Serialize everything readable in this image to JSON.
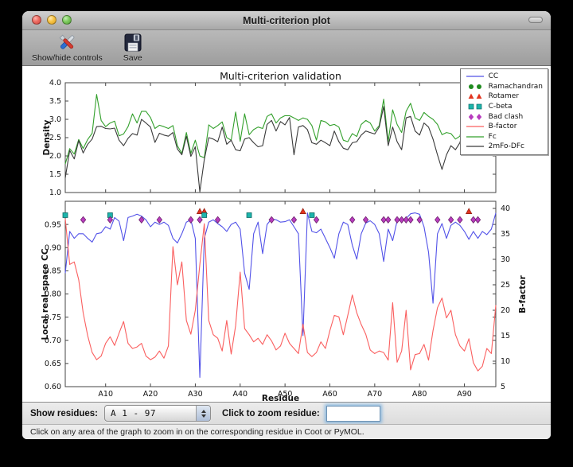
{
  "window": {
    "title": "Multi-criterion plot"
  },
  "toolbar": {
    "controls_label": "Show/hide controls",
    "save_label": "Save"
  },
  "figure": {
    "title": "Multi-criterion validation",
    "top": {
      "ylabel": "Density"
    },
    "bottom": {
      "ylabel_left": "Local real-space CC",
      "ylabel_right": "B-factor",
      "xlabel": "Residue"
    }
  },
  "legend": [
    {
      "label": "CC",
      "swatch": "line",
      "color": "#5252e8"
    },
    {
      "label": "Ramachandran",
      "swatch": "circle",
      "color": "#1f8b1f"
    },
    {
      "label": "Rotamer",
      "swatch": "triangle",
      "color": "#e2341f"
    },
    {
      "label": "C-beta",
      "swatch": "square",
      "color": "#1db4ab"
    },
    {
      "label": "Bad clash",
      "swatch": "diamond",
      "color": "#b83cbe"
    },
    {
      "label": "B-factor",
      "swatch": "line",
      "color": "#fa5f5f"
    },
    {
      "label": "Fc",
      "swatch": "line",
      "color": "#33a02c"
    },
    {
      "label": "2mFo-DFc",
      "swatch": "line",
      "color": "#3a3a3a"
    }
  ],
  "controls": {
    "show_residues_label": "Show residues:",
    "chain_range_value": "A  1 - 97",
    "zoom_residue_label": "Click to zoom residue:",
    "zoom_input_value": ""
  },
  "status": {
    "message": "Click on any area of the graph to zoom in on the corresponding residue in Coot or PyMOL."
  },
  "chart_data": [
    {
      "type": "line",
      "title": "Multi-criterion validation",
      "ylabel": "Density",
      "ylim": [
        1.0,
        4.0
      ],
      "ytick_values": [
        1.0,
        1.5,
        2.0,
        2.5,
        3.0,
        3.5,
        4.0
      ],
      "ytick_labels": [
        "1.0",
        "1.5",
        "2.0",
        "2.5",
        "3.0",
        "3.5",
        "4.0"
      ],
      "x_range": [
        1,
        97
      ],
      "xtick_values": [
        10,
        20,
        30,
        40,
        50,
        60,
        70,
        80,
        90
      ],
      "grid": false,
      "series": [
        {
          "name": "Fc",
          "color": "#33a02c",
          "values": [
            1.78,
            2.2,
            2.05,
            2.45,
            2.2,
            2.45,
            2.62,
            3.68,
            2.97,
            2.8,
            2.9,
            2.95,
            2.55,
            2.6,
            2.8,
            3.15,
            2.9,
            3.22,
            3.22,
            3.05,
            2.75,
            2.84,
            2.8,
            2.75,
            2.83,
            2.28,
            2.07,
            2.64,
            2.07,
            2.43,
            2.0,
            1.95,
            2.85,
            2.75,
            2.83,
            2.93,
            2.5,
            2.43,
            3.2,
            2.4,
            3.15,
            2.58,
            2.72,
            2.79,
            2.75,
            3.08,
            3.15,
            2.9,
            3.04,
            3.1,
            3.1,
            3.04,
            2.97,
            3.04,
            3.0,
            2.83,
            2.43,
            2.97,
            2.93,
            2.83,
            2.86,
            2.79,
            2.43,
            2.39,
            2.61,
            2.53,
            2.86,
            2.97,
            2.9,
            2.68,
            2.83,
            3.55,
            2.39,
            3.26,
            2.86,
            2.64,
            3.22,
            3.44,
            3.04,
            2.97,
            3.19,
            3.08,
            3.0,
            2.86,
            2.58,
            2.64,
            2.61,
            2.46,
            2.54,
            3.19,
            2.58,
            2.64,
            2.68,
            2.72,
            2.79,
            3.26,
            3.25
          ]
        },
        {
          "name": "2mFo-DFc",
          "color": "#3a3a3a",
          "values": [
            1.4,
            2.15,
            1.92,
            2.42,
            2.08,
            2.32,
            2.46,
            2.8,
            2.81,
            2.75,
            2.74,
            2.76,
            2.43,
            2.28,
            2.48,
            2.61,
            2.57,
            3.0,
            2.9,
            2.79,
            2.37,
            2.62,
            2.57,
            2.54,
            2.64,
            2.19,
            2.03,
            2.54,
            1.99,
            2.25,
            1.02,
            1.9,
            2.5,
            2.46,
            2.39,
            2.79,
            2.32,
            2.43,
            2.17,
            2.14,
            2.46,
            2.5,
            2.36,
            2.25,
            2.28,
            2.86,
            2.97,
            2.68,
            2.94,
            2.85,
            3.05,
            2.03,
            2.79,
            2.83,
            2.72,
            2.36,
            2.32,
            2.43,
            2.36,
            2.28,
            2.68,
            2.39,
            2.21,
            2.17,
            2.36,
            2.39,
            2.57,
            2.68,
            2.64,
            2.6,
            2.79,
            3.35,
            2.28,
            2.79,
            2.39,
            2.17,
            3.04,
            3.08,
            2.68,
            2.57,
            2.9,
            2.79,
            2.46,
            2.03,
            1.63,
            2.03,
            2.28,
            2.17,
            2.36,
            2.86,
            2.17,
            2.39,
            2.46,
            2.57,
            2.68,
            2.94,
            2.9
          ]
        }
      ]
    },
    {
      "type": "line+scatter",
      "xlabel": "Residue",
      "ylabel_left": "Local real-space CC",
      "ylim_left": [
        0.6,
        1.0
      ],
      "ytick_left_values": [
        0.6,
        0.65,
        0.7,
        0.75,
        0.8,
        0.85,
        0.9,
        0.95
      ],
      "ytick_left_labels": [
        "0.60",
        "0.65",
        "0.70",
        "0.75",
        "0.80",
        "0.85",
        "0.90",
        "0.95"
      ],
      "ylabel_right": "B-factor",
      "ylim_right": [
        5,
        41.4
      ],
      "ytick_right_values": [
        5,
        10,
        15,
        20,
        25,
        30,
        35,
        40
      ],
      "ytick_right_labels": [
        "5",
        "10",
        "15",
        "20",
        "25",
        "30",
        "35",
        "40"
      ],
      "x_range": [
        1,
        97
      ],
      "xtick_values": [
        10,
        20,
        30,
        40,
        50,
        60,
        70,
        80,
        90
      ],
      "xtick_labels": [
        "A10",
        "A20",
        "A30",
        "A40",
        "A50",
        "A60",
        "A70",
        "A80",
        "A90"
      ],
      "grid": false,
      "series": [
        {
          "name": "CC",
          "axis": "left",
          "color": "#5252e8",
          "values": [
            0.845,
            0.935,
            0.92,
            0.93,
            0.93,
            0.92,
            0.912,
            0.93,
            0.932,
            0.945,
            0.94,
            0.965,
            0.957,
            0.915,
            0.965,
            0.968,
            0.972,
            0.968,
            0.96,
            0.945,
            0.955,
            0.95,
            0.955,
            0.948,
            0.92,
            0.91,
            0.93,
            0.955,
            0.96,
            0.92,
            0.62,
            0.92,
            0.955,
            0.96,
            0.952,
            0.945,
            0.935,
            0.95,
            0.955,
            0.94,
            0.845,
            0.81,
            0.93,
            0.955,
            0.887,
            0.95,
            0.962,
            0.96,
            0.955,
            0.956,
            0.96,
            0.945,
            0.93,
            0.71,
            0.975,
            0.935,
            0.932,
            0.94,
            0.92,
            0.9,
            0.877,
            0.93,
            0.955,
            0.95,
            0.905,
            0.875,
            0.93,
            0.953,
            0.958,
            0.95,
            0.93,
            0.87,
            0.94,
            0.915,
            0.958,
            0.96,
            0.963,
            0.973,
            0.975,
            0.972,
            0.945,
            0.89,
            0.78,
            0.93,
            0.952,
            0.92,
            0.948,
            0.955,
            0.948,
            0.935,
            0.918,
            0.935,
            0.92,
            0.935,
            0.928,
            0.94,
            0.975
          ]
        },
        {
          "name": "B-factor",
          "axis": "right",
          "color": "#fa5f5f",
          "values": [
            38,
            29,
            29.5,
            26,
            19.5,
            15,
            11.7,
            10.3,
            11,
            13.5,
            14.8,
            13.1,
            15.5,
            17.8,
            13.5,
            12.5,
            12.8,
            13.5,
            11,
            10.3,
            10.8,
            12,
            10.6,
            13,
            32.5,
            25,
            29.5,
            18,
            15.3,
            20,
            29,
            37,
            18,
            15.2,
            14.5,
            12,
            18,
            11.4,
            17,
            27.5,
            16.4,
            15.2,
            13.8,
            14.5,
            13.3,
            15.2,
            14,
            12.2,
            13,
            15.5,
            13.5,
            12.5,
            11.5,
            17.3,
            11.7,
            10.9,
            11.7,
            13.8,
            12.5,
            16,
            19,
            18.7,
            15.2,
            19,
            23,
            19.5,
            17.2,
            15.3,
            12.2,
            11.5,
            12,
            11.7,
            10.2,
            21.5,
            9.8,
            12,
            20,
            8.3,
            11.3,
            11.5,
            13.3,
            10.2,
            16,
            20.5,
            22.4,
            18.5,
            20,
            15.2,
            13,
            12,
            14.4,
            9.7,
            8.1,
            9,
            12.5,
            11.5,
            21
          ]
        }
      ],
      "markers": [
        {
          "name": "Rotamer",
          "shape": "triangle",
          "color": "#e2341f",
          "y": 0.978,
          "residues": [
            31,
            32,
            54,
            91
          ]
        },
        {
          "name": "C-beta",
          "shape": "square",
          "color": "#1db4ab",
          "y": 0.97,
          "residues": [
            1,
            11,
            32,
            42,
            56
          ]
        },
        {
          "name": "Bad clash",
          "shape": "diamond",
          "color": "#b83cbe",
          "y": 0.96,
          "residues": [
            5,
            11,
            18,
            22,
            29,
            31,
            35,
            47,
            52,
            57,
            65,
            68,
            72,
            73,
            75,
            76,
            77,
            78,
            80,
            84,
            87,
            89,
            92,
            93
          ]
        },
        {
          "name": "Ramachandran",
          "shape": "circle",
          "color": "#1f8b1f",
          "y": 0.985,
          "residues": []
        }
      ]
    }
  ]
}
